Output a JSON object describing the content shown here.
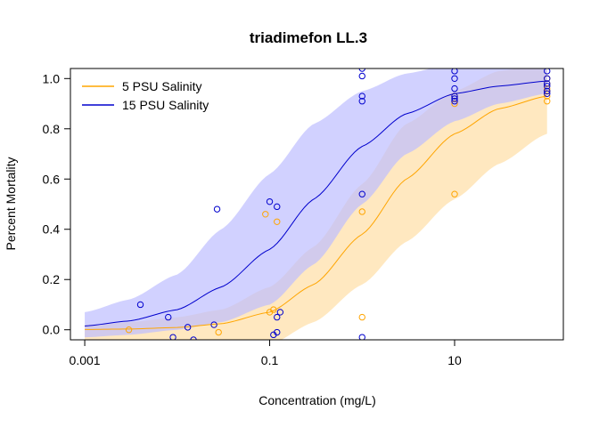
{
  "chart_data": {
    "type": "scatter",
    "title": "triadimefon LL.3",
    "xlabel": "Concentration (mg/L)",
    "ylabel": "Percent Mortality",
    "x_scale": "log10",
    "xlim": [
      0.0007,
      150
    ],
    "ylim": [
      -0.04,
      1.04
    ],
    "x_ticks": [
      0.001,
      0.1,
      10
    ],
    "x_tick_labels": [
      "0.001",
      "0.1",
      "10"
    ],
    "y_ticks": [
      0,
      0.2,
      0.4,
      0.6,
      0.8,
      1.0
    ],
    "y_tick_labels": [
      "0.0",
      "0.2",
      "0.4",
      "0.6",
      "0.8",
      "1.0"
    ],
    "grid": false,
    "legend_position": "top-left",
    "series": [
      {
        "name": "5 PSU Salinity",
        "color": "#FFA500",
        "band_color": "#FFE4B5",
        "fit_ed50": 3.2,
        "fit_slope": 0.85,
        "points": [
          {
            "x": 0.003,
            "y": 0.0
          },
          {
            "x": 0.028,
            "y": -0.01
          },
          {
            "x": 0.09,
            "y": 0.46
          },
          {
            "x": 0.12,
            "y": 0.43
          },
          {
            "x": 0.1,
            "y": 0.07
          },
          {
            "x": 0.11,
            "y": 0.08
          },
          {
            "x": 1.0,
            "y": 0.47
          },
          {
            "x": 1.0,
            "y": 0.05
          },
          {
            "x": 10,
            "y": 0.54
          },
          {
            "x": 10,
            "y": 0.9
          },
          {
            "x": 10,
            "y": 0.93
          },
          {
            "x": 100,
            "y": 0.91
          },
          {
            "x": 100,
            "y": 0.93
          },
          {
            "x": 100,
            "y": 0.95
          },
          {
            "x": 100,
            "y": 0.96
          },
          {
            "x": 100,
            "y": 0.98
          },
          {
            "x": 100,
            "y": 1.0
          }
        ],
        "fit": {
          "x": [
            0.001,
            0.003,
            0.01,
            0.03,
            0.1,
            0.3,
            1,
            3,
            10,
            30,
            100
          ],
          "y": [
            0.001,
            0.003,
            0.009,
            0.024,
            0.07,
            0.18,
            0.38,
            0.6,
            0.78,
            0.88,
            0.93
          ],
          "lower": [
            -0.1,
            -0.1,
            -0.1,
            -0.1,
            -0.06,
            0.03,
            0.18,
            0.35,
            0.52,
            0.66,
            0.78
          ],
          "upper": [
            0.02,
            0.03,
            0.05,
            0.08,
            0.17,
            0.33,
            0.58,
            0.82,
            0.95,
            1.03,
            1.06
          ]
        }
      },
      {
        "name": "15 PSU Salinity",
        "color": "#0000CD",
        "band_color": "#BEBEFF",
        "fit_ed50": 0.28,
        "fit_slope": 0.78,
        "points": [
          {
            "x": 0.004,
            "y": 0.1
          },
          {
            "x": 0.008,
            "y": 0.05
          },
          {
            "x": 0.009,
            "y": -0.03
          },
          {
            "x": 0.013,
            "y": 0.01
          },
          {
            "x": 0.015,
            "y": -0.04
          },
          {
            "x": 0.025,
            "y": 0.02
          },
          {
            "x": 0.027,
            "y": 0.48
          },
          {
            "x": 0.1,
            "y": 0.51
          },
          {
            "x": 0.12,
            "y": 0.49
          },
          {
            "x": 0.11,
            "y": -0.02
          },
          {
            "x": 0.12,
            "y": -0.01
          },
          {
            "x": 0.12,
            "y": 0.05
          },
          {
            "x": 0.13,
            "y": 0.07
          },
          {
            "x": 1.0,
            "y": 1.04
          },
          {
            "x": 1.0,
            "y": 1.01
          },
          {
            "x": 1.0,
            "y": 0.93
          },
          {
            "x": 1.0,
            "y": 0.91
          },
          {
            "x": 1.0,
            "y": 0.54
          },
          {
            "x": 1.0,
            "y": -0.03
          },
          {
            "x": 10,
            "y": 1.03
          },
          {
            "x": 10,
            "y": 1.0
          },
          {
            "x": 10,
            "y": 0.96
          },
          {
            "x": 10,
            "y": 0.93
          },
          {
            "x": 10,
            "y": 0.92
          },
          {
            "x": 10,
            "y": 0.91
          },
          {
            "x": 100,
            "y": 1.03
          },
          {
            "x": 100,
            "y": 1.0
          },
          {
            "x": 100,
            "y": 0.98
          },
          {
            "x": 100,
            "y": 0.97
          },
          {
            "x": 100,
            "y": 0.95
          },
          {
            "x": 100,
            "y": 0.94
          }
        ],
        "fit": {
          "x": [
            0.001,
            0.003,
            0.01,
            0.03,
            0.1,
            0.3,
            1,
            3,
            10,
            30,
            100
          ],
          "y": [
            0.015,
            0.035,
            0.08,
            0.17,
            0.32,
            0.52,
            0.73,
            0.86,
            0.94,
            0.97,
            0.99
          ],
          "lower": [
            -0.03,
            -0.02,
            0.0,
            0.03,
            0.1,
            0.26,
            0.5,
            0.7,
            0.83,
            0.9,
            0.94
          ],
          "upper": [
            0.07,
            0.12,
            0.22,
            0.4,
            0.62,
            0.82,
            0.95,
            1.02,
            1.06,
            1.07,
            1.07
          ]
        }
      }
    ]
  }
}
